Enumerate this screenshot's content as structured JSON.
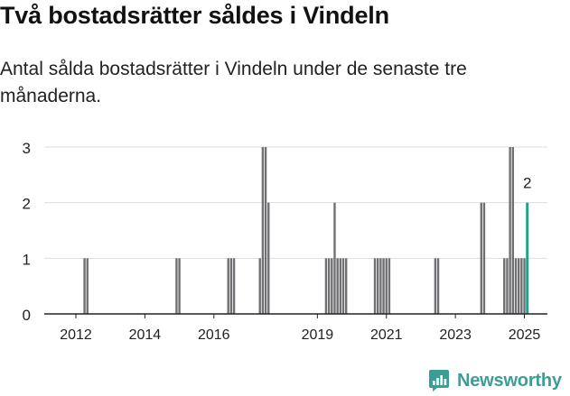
{
  "header": {
    "title": "Två bostadsrätter såldes i Vindeln",
    "subtitle": "Antal sålda bostadsrätter i Vindeln under de senaste tre månaderna."
  },
  "brand": {
    "name": "Newsworthy",
    "icon": "newsworthy-logo-icon",
    "color": "#3a9e96"
  },
  "colors": {
    "bar": "#707074",
    "highlight": "#2a9d8f",
    "grid": "#dddddd",
    "axis": "#222222"
  },
  "chart_data": {
    "type": "bar",
    "x_unit": "date (monthly)",
    "xlim": [
      "2011-04",
      "2025-11"
    ],
    "ylim": [
      0,
      3
    ],
    "yticks": [
      0,
      1,
      2,
      3
    ],
    "xticks": [
      {
        "date": "2012-03",
        "label": "2012"
      },
      {
        "date": "2014-03",
        "label": "2014"
      },
      {
        "date": "2016-03",
        "label": "2016"
      },
      {
        "date": "2019-03",
        "label": "2019"
      },
      {
        "date": "2021-03",
        "label": "2021"
      },
      {
        "date": "2023-03",
        "label": "2023"
      },
      {
        "date": "2025-03",
        "label": "2025"
      }
    ],
    "grid": true,
    "bars": [
      {
        "date": "2012-06",
        "value": 1
      },
      {
        "date": "2012-07",
        "value": 1
      },
      {
        "date": "2015-02",
        "value": 1
      },
      {
        "date": "2015-03",
        "value": 1
      },
      {
        "date": "2016-08",
        "value": 1
      },
      {
        "date": "2016-09",
        "value": 1
      },
      {
        "date": "2016-10",
        "value": 1
      },
      {
        "date": "2017-07",
        "value": 1
      },
      {
        "date": "2017-08",
        "value": 3
      },
      {
        "date": "2017-09",
        "value": 3
      },
      {
        "date": "2017-10",
        "value": 2
      },
      {
        "date": "2019-06",
        "value": 1
      },
      {
        "date": "2019-07",
        "value": 1
      },
      {
        "date": "2019-08",
        "value": 1
      },
      {
        "date": "2019-09",
        "value": 2
      },
      {
        "date": "2019-10",
        "value": 1
      },
      {
        "date": "2019-11",
        "value": 1
      },
      {
        "date": "2019-12",
        "value": 1
      },
      {
        "date": "2020-01",
        "value": 1
      },
      {
        "date": "2020-11",
        "value": 1
      },
      {
        "date": "2020-12",
        "value": 1
      },
      {
        "date": "2021-01",
        "value": 1
      },
      {
        "date": "2021-02",
        "value": 1
      },
      {
        "date": "2021-03",
        "value": 1
      },
      {
        "date": "2021-04",
        "value": 1
      },
      {
        "date": "2022-08",
        "value": 1
      },
      {
        "date": "2022-09",
        "value": 1
      },
      {
        "date": "2023-12",
        "value": 2
      },
      {
        "date": "2024-01",
        "value": 2
      },
      {
        "date": "2024-08",
        "value": 1
      },
      {
        "date": "2024-09",
        "value": 1
      },
      {
        "date": "2024-10",
        "value": 3
      },
      {
        "date": "2024-11",
        "value": 3
      },
      {
        "date": "2024-12",
        "value": 1
      },
      {
        "date": "2025-01",
        "value": 1
      },
      {
        "date": "2025-02",
        "value": 1
      },
      {
        "date": "2025-03",
        "value": 1
      },
      {
        "date": "2025-04",
        "value": 2,
        "highlight": true,
        "label": "2"
      }
    ]
  }
}
